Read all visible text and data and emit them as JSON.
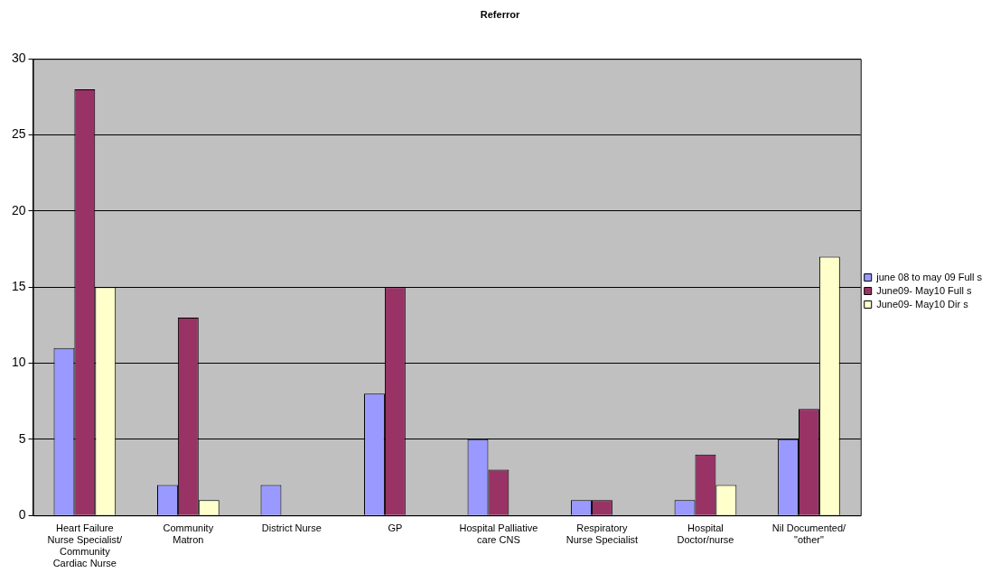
{
  "chart_data": {
    "type": "bar",
    "title": "Referror",
    "categories": [
      "Heart Failure Nurse Specialist/ Community Cardiac Nurse",
      "Community Matron",
      "District Nurse",
      "GP",
      "Hospital Palliative care CNS",
      "Respiratory Nurse Specialist",
      "Hospital Doctor/nurse",
      "Nil Documented/ \"other\""
    ],
    "series": [
      {
        "name": "june 08 to may 09 Full s",
        "color": "#9999ff",
        "values": [
          11,
          2,
          2,
          8,
          5,
          1,
          1,
          5
        ]
      },
      {
        "name": "June09- May10 Full s",
        "color": "#993366",
        "values": [
          28,
          13,
          0,
          15,
          3,
          1,
          4,
          7
        ]
      },
      {
        "name": "June09- May10 Dir s",
        "color": "#ffffcc",
        "values": [
          15,
          1,
          0,
          0,
          0,
          0,
          2,
          17
        ]
      }
    ],
    "ylim": [
      0,
      30
    ],
    "yticks": [
      0,
      5,
      10,
      15,
      20,
      25,
      30
    ],
    "grid": "y",
    "legend": "right"
  }
}
